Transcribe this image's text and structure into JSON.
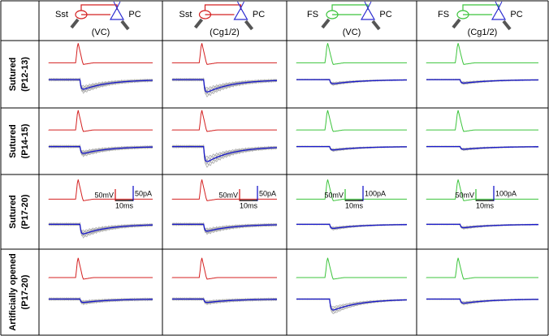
{
  "columns": [
    {
      "pre": "Sst",
      "post": "PC",
      "region": "(VC)"
    },
    {
      "pre": "Sst",
      "post": "PC",
      "region": "(Cg1/2)"
    },
    {
      "pre": "FS",
      "post": "PC",
      "region": "(VC)"
    },
    {
      "pre": "FS",
      "post": "PC",
      "region": "(Cg1/2)"
    }
  ],
  "rows": [
    {
      "label": "Sutured",
      "age": "(P12-13)"
    },
    {
      "label": "Sutured",
      "age": "(P14-15)"
    },
    {
      "label": "Sutured",
      "age": "(P17-20)"
    },
    {
      "label": "Artificially opened",
      "age": "(P17-20)"
    }
  ],
  "scale_bars": [
    {
      "voltage": "50mV",
      "current": "50pA",
      "time": "10ms"
    },
    {
      "voltage": "50mV",
      "current": "50pA",
      "time": "10ms"
    },
    {
      "voltage": "50mV",
      "current": "100pA",
      "time": "10ms"
    },
    {
      "voltage": "50mV",
      "current": "100pA",
      "time": "10ms"
    }
  ]
}
